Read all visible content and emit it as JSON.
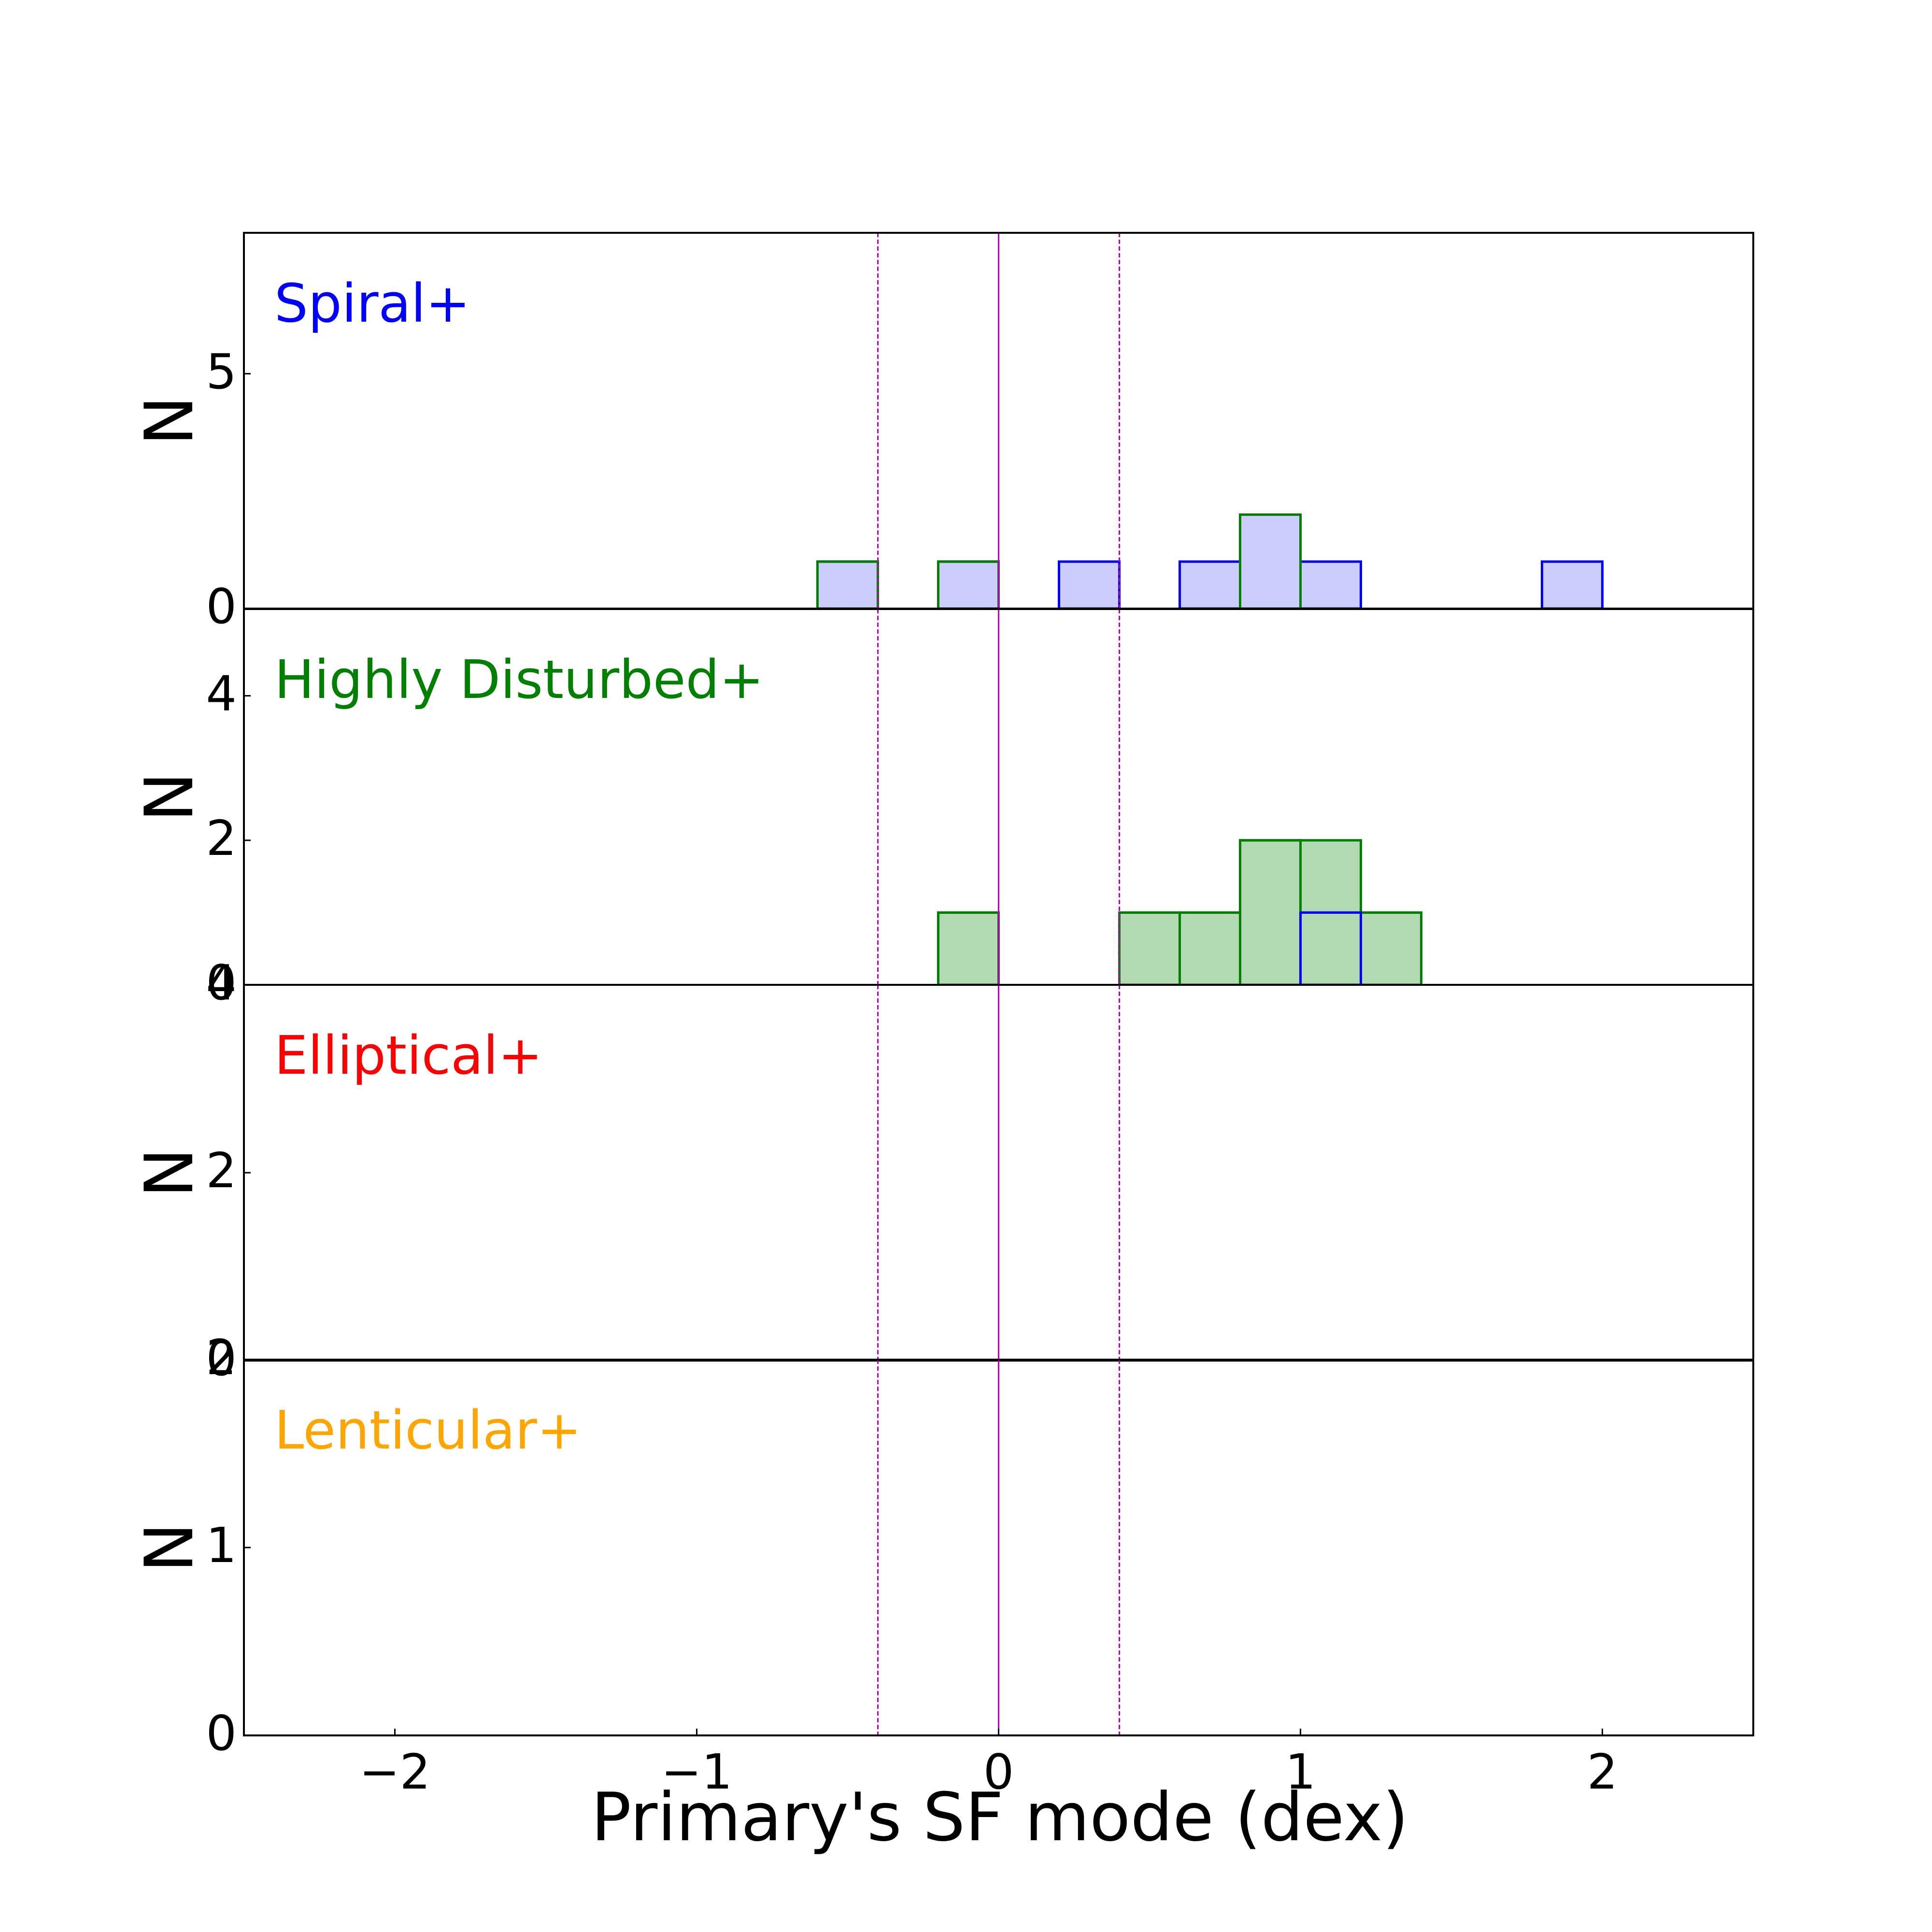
{
  "figure": {
    "xlabel": "Primary's SF mode (dex)",
    "xticks": [
      "−2",
      "−1",
      "0",
      "1",
      "2"
    ],
    "xtick_values": [
      -2,
      -1,
      0,
      1,
      2
    ]
  },
  "chart_data": [
    {
      "type": "bar",
      "title": "Spiral+",
      "title_color": "#0000ff",
      "ylabel": "N",
      "xlim": [
        -2.5,
        2.5
      ],
      "ylim": [
        0,
        8
      ],
      "yticks": [
        "0",
        "5"
      ],
      "ytick_values": [
        0,
        5
      ],
      "vlines": [
        {
          "x": -0.4,
          "style": "dashed",
          "color": "#bf00bf"
        },
        {
          "x": 0.0,
          "style": "solid",
          "color": "#bf00bf"
        },
        {
          "x": 0.4,
          "style": "dashed",
          "color": "#bf00bf"
        }
      ],
      "series": [
        {
          "kind": "step-filled",
          "fill": "#ccccff",
          "stroke": "#0000ff",
          "bins": [
            [
              -0.6,
              -0.4,
              1
            ],
            [
              -0.2,
              0.0,
              1
            ],
            [
              0.2,
              0.4,
              1
            ],
            [
              0.6,
              0.8,
              1
            ],
            [
              0.8,
              1.0,
              2
            ],
            [
              1.0,
              1.2,
              1
            ],
            [
              1.8,
              2.0,
              1
            ]
          ]
        },
        {
          "kind": "step",
          "stroke": "#007f00",
          "bins": [
            [
              -0.6,
              -0.4,
              1
            ],
            [
              -0.2,
              0.0,
              1
            ],
            [
              0.8,
              1.0,
              2
            ]
          ]
        }
      ]
    },
    {
      "type": "bar",
      "title": "Highly Disturbed+",
      "title_color": "#007f00",
      "ylabel": "N",
      "xlim": [
        -2.5,
        2.5
      ],
      "ylim": [
        0,
        5.2
      ],
      "yticks": [
        "0",
        "2",
        "4"
      ],
      "ytick_values": [
        0,
        2,
        4
      ],
      "vlines": [
        {
          "x": -0.4,
          "style": "dashed",
          "color": "#bf00bf"
        },
        {
          "x": 0.0,
          "style": "solid",
          "color": "#bf00bf"
        },
        {
          "x": 0.4,
          "style": "dashed",
          "color": "#bf00bf"
        }
      ],
      "series": [
        {
          "kind": "step-filled",
          "fill": "#b3d9b3",
          "stroke": "#007f00",
          "bins": [
            [
              -0.2,
              0.0,
              1
            ],
            [
              0.4,
              0.6,
              1
            ],
            [
              0.6,
              0.8,
              1
            ],
            [
              0.8,
              1.0,
              2
            ],
            [
              1.0,
              1.2,
              2
            ],
            [
              1.2,
              1.4,
              1
            ]
          ]
        },
        {
          "kind": "step",
          "stroke": "#007f00",
          "bins": [
            [
              -0.2,
              0.0,
              1
            ],
            [
              0.4,
              0.6,
              1
            ],
            [
              0.6,
              0.8,
              1
            ],
            [
              0.8,
              1.0,
              2
            ],
            [
              1.2,
              1.4,
              1
            ]
          ]
        },
        {
          "kind": "step",
          "stroke": "#0000ff",
          "bins": [
            [
              1.0,
              1.2,
              1
            ]
          ]
        }
      ]
    },
    {
      "type": "bar",
      "title": "Elliptical+",
      "title_color": "#ff0000",
      "ylabel": "N",
      "xlim": [
        -2.5,
        2.5
      ],
      "ylim": [
        0,
        4
      ],
      "yticks": [
        "0",
        "2",
        "4"
      ],
      "ytick_values": [
        0,
        2,
        4
      ],
      "vlines": [
        {
          "x": -0.4,
          "style": "dashed",
          "color": "#bf00bf"
        },
        {
          "x": 0.0,
          "style": "solid",
          "color": "#bf00bf"
        },
        {
          "x": 0.4,
          "style": "dashed",
          "color": "#bf00bf"
        }
      ],
      "series": []
    },
    {
      "type": "bar",
      "title": "Lenticular+",
      "title_color": "#ffa500",
      "ylabel": "N",
      "xlim": [
        -2.5,
        2.5
      ],
      "ylim": [
        0,
        2
      ],
      "yticks": [
        "0",
        "1",
        "2"
      ],
      "ytick_values": [
        0,
        1,
        2
      ],
      "vlines": [
        {
          "x": -0.4,
          "style": "dashed",
          "color": "#bf00bf"
        },
        {
          "x": 0.0,
          "style": "solid",
          "color": "#bf00bf"
        },
        {
          "x": 0.4,
          "style": "dashed",
          "color": "#bf00bf"
        }
      ],
      "series": []
    }
  ]
}
